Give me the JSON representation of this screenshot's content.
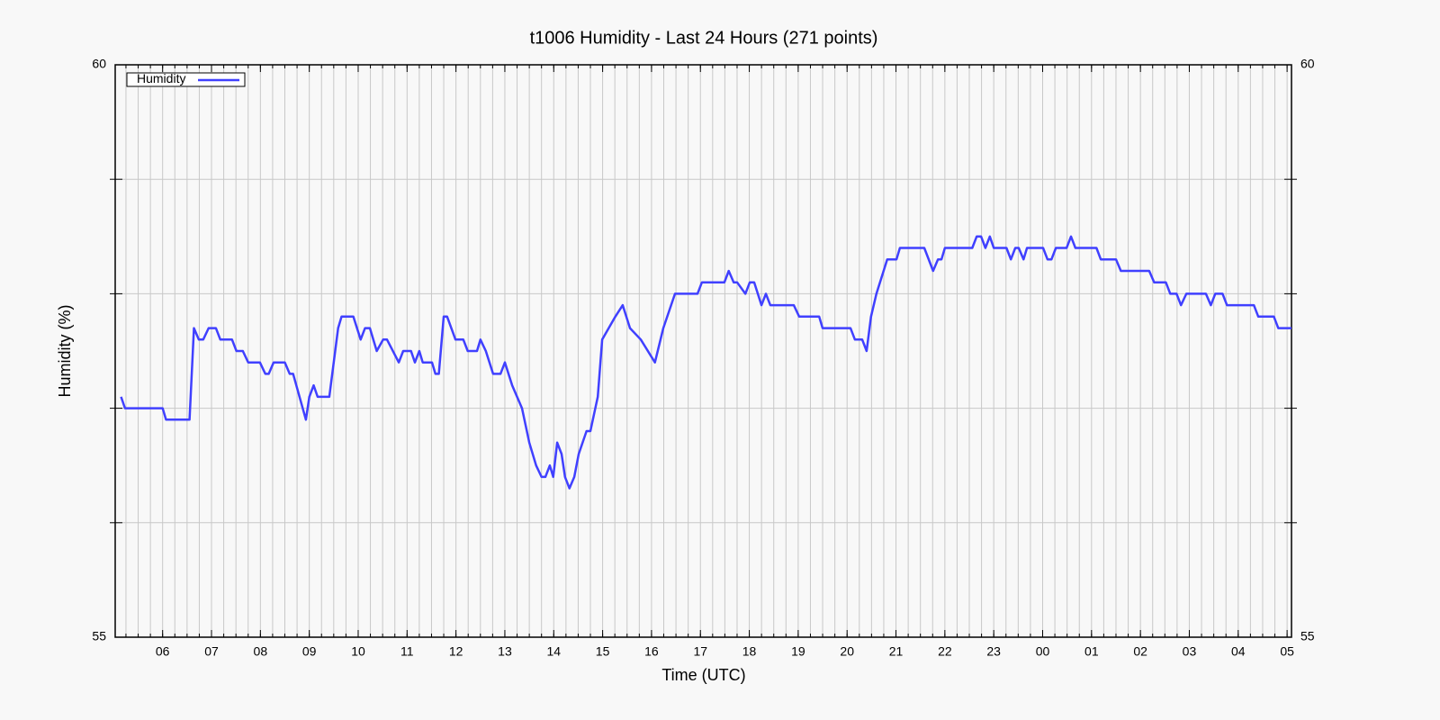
{
  "chart_data": {
    "type": "line",
    "title": "t1006 Humidity - Last 24 Hours (271 points)",
    "xlabel": "Time (UTC)",
    "ylabel": "Humidity (%)",
    "xlim": [
      5.03,
      29.09
    ],
    "xticks": [
      {
        "value": 6,
        "label": "06"
      },
      {
        "value": 7,
        "label": "07"
      },
      {
        "value": 8,
        "label": "08"
      },
      {
        "value": 9,
        "label": "09"
      },
      10,
      11,
      12,
      13,
      14,
      15,
      16,
      17,
      18,
      19,
      20,
      21,
      22,
      23,
      {
        "value": 24,
        "label": "00"
      },
      {
        "value": 25,
        "label": "01"
      },
      {
        "value": 26,
        "label": "02"
      },
      {
        "value": 27,
        "label": "03"
      },
      {
        "value": 28,
        "label": "04"
      },
      {
        "value": 29,
        "label": "05"
      }
    ],
    "xminor": 4,
    "ylim": [
      55,
      60
    ],
    "yticks": [
      55,
      60
    ],
    "yminorticks": [
      56,
      57,
      58,
      59
    ],
    "y2lim": [
      55,
      60
    ],
    "y2ticks": [
      55,
      60
    ],
    "grid": true,
    "legend": "top-left",
    "x": [
      5.15,
      5.23,
      6.0,
      6.07,
      6.55,
      6.64,
      6.74,
      6.83,
      6.94,
      7.09,
      7.18,
      7.42,
      7.51,
      7.64,
      7.75,
      7.99,
      8.1,
      8.17,
      8.27,
      8.5,
      8.6,
      8.67,
      8.93,
      9.0,
      9.09,
      9.17,
      9.41,
      9.59,
      9.66,
      9.9,
      10.05,
      10.14,
      10.24,
      10.38,
      10.51,
      10.59,
      10.83,
      10.92,
      11.08,
      11.16,
      11.25,
      11.32,
      11.51,
      11.58,
      11.65,
      11.75,
      11.82,
      11.99,
      12.15,
      12.24,
      12.43,
      12.5,
      12.61,
      12.76,
      12.91,
      13.0,
      13.15,
      13.35,
      13.5,
      13.64,
      13.75,
      13.83,
      13.92,
      13.99,
      14.07,
      14.16,
      14.23,
      14.32,
      14.42,
      14.51,
      14.67,
      14.75,
      14.9,
      14.99,
      15.26,
      15.41,
      15.56,
      15.78,
      16.07,
      16.24,
      16.48,
      16.94,
      17.03,
      17.49,
      17.58,
      17.68,
      17.75,
      17.92,
      18.01,
      18.1,
      18.25,
      18.34,
      18.43,
      18.91,
      19.02,
      19.43,
      19.5,
      20.07,
      20.16,
      20.31,
      20.4,
      20.49,
      20.6,
      20.82,
      21.01,
      21.08,
      21.58,
      21.76,
      21.86,
      21.93,
      22.0,
      22.56,
      22.65,
      22.74,
      22.83,
      22.92,
      23.0,
      23.26,
      23.35,
      23.44,
      23.51,
      23.61,
      23.68,
      24.01,
      24.1,
      24.18,
      24.27,
      24.49,
      24.58,
      24.67,
      25.1,
      25.19,
      25.5,
      25.6,
      26.18,
      26.28,
      26.52,
      26.61,
      26.74,
      26.83,
      26.94,
      27.34,
      27.44,
      27.53,
      27.68,
      27.77,
      28.32,
      28.41,
      28.73,
      28.82,
      29.09
    ],
    "series": [
      {
        "name": "Humidity",
        "color": "#4040ff",
        "values": [
          57.1,
          57.0,
          57.0,
          56.9,
          56.9,
          57.7,
          57.6,
          57.6,
          57.7,
          57.7,
          57.6,
          57.6,
          57.5,
          57.5,
          57.4,
          57.4,
          57.3,
          57.3,
          57.4,
          57.4,
          57.3,
          57.3,
          56.9,
          57.1,
          57.2,
          57.1,
          57.1,
          57.7,
          57.8,
          57.8,
          57.6,
          57.7,
          57.7,
          57.5,
          57.6,
          57.6,
          57.4,
          57.5,
          57.5,
          57.4,
          57.5,
          57.4,
          57.4,
          57.3,
          57.3,
          57.8,
          57.8,
          57.6,
          57.6,
          57.5,
          57.5,
          57.6,
          57.5,
          57.3,
          57.3,
          57.4,
          57.2,
          57.0,
          56.7,
          56.5,
          56.4,
          56.4,
          56.5,
          56.4,
          56.7,
          56.6,
          56.4,
          56.3,
          56.4,
          56.6,
          56.8,
          56.8,
          57.1,
          57.6,
          57.8,
          57.9,
          57.7,
          57.6,
          57.4,
          57.7,
          58.0,
          58.0,
          58.1,
          58.1,
          58.2,
          58.1,
          58.1,
          58.0,
          58.1,
          58.1,
          57.9,
          58.0,
          57.9,
          57.9,
          57.8,
          57.8,
          57.7,
          57.7,
          57.6,
          57.6,
          57.5,
          57.8,
          58.0,
          58.3,
          58.3,
          58.4,
          58.4,
          58.2,
          58.3,
          58.3,
          58.4,
          58.4,
          58.5,
          58.5,
          58.4,
          58.5,
          58.4,
          58.4,
          58.3,
          58.4,
          58.4,
          58.3,
          58.4,
          58.4,
          58.3,
          58.3,
          58.4,
          58.4,
          58.5,
          58.4,
          58.4,
          58.3,
          58.3,
          58.2,
          58.2,
          58.1,
          58.1,
          58.0,
          58.0,
          57.9,
          58.0,
          58.0,
          57.9,
          58.0,
          58.0,
          57.9,
          57.9,
          57.8,
          57.8,
          57.7,
          57.7
        ]
      }
    ]
  }
}
